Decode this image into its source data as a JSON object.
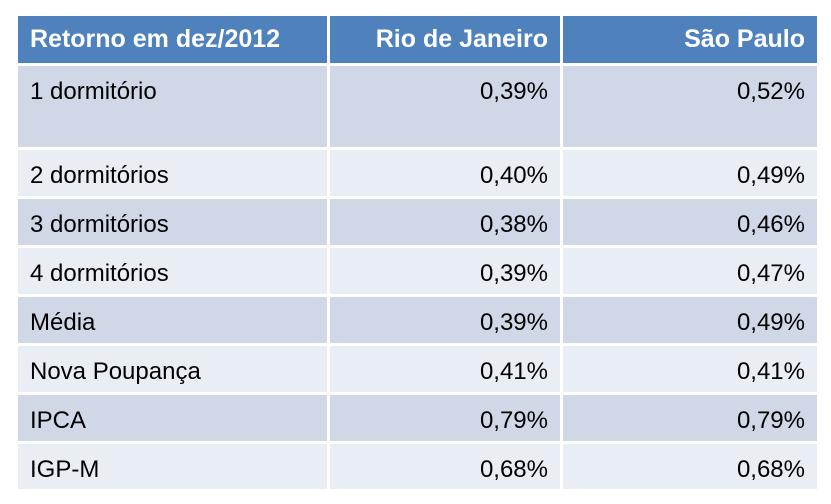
{
  "table": {
    "headers": [
      "Retorno em dez/2012",
      "Rio de Janeiro",
      "São Paulo"
    ],
    "rows": [
      [
        "1 dormitório",
        "0,39%",
        "0,52%"
      ],
      [
        "2 dormitórios",
        "0,40%",
        "0,49%"
      ],
      [
        "3 dormitórios",
        "0,38%",
        "0,46%"
      ],
      [
        "4 dormitórios",
        "0,39%",
        "0,47%"
      ],
      [
        "Média",
        "0,39%",
        "0,49%"
      ],
      [
        "Nova Poupança",
        "0,41%",
        "0,41%"
      ],
      [
        "IPCA",
        "0,79%",
        "0,79%"
      ],
      [
        "IGP-M",
        "0,68%",
        "0,68%"
      ]
    ]
  },
  "colors": {
    "header_bg": "#4f81bd",
    "row_odd_bg": "#d0d8e8",
    "row_even_bg": "#e9edf4",
    "header_text": "#ffffff"
  }
}
